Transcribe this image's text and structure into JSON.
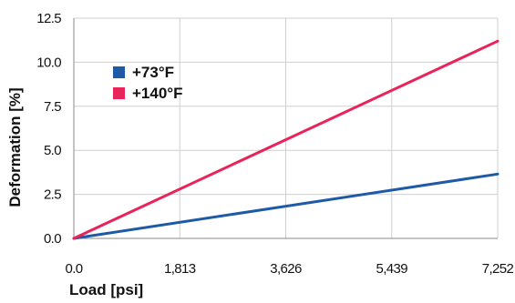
{
  "chart_data": {
    "type": "line",
    "xlabel": "Load [psi]",
    "ylabel": "Deformation [%]",
    "xlim": [
      0,
      7252
    ],
    "ylim": [
      0,
      12.5
    ],
    "x_ticks": [
      0,
      1813,
      3626,
      5439,
      7252
    ],
    "x_tick_labels": [
      "0.0",
      "1,813",
      "3,626",
      "5,439",
      "7,252"
    ],
    "y_ticks": [
      0,
      2.5,
      5,
      7.5,
      10,
      12.5
    ],
    "y_tick_labels": [
      "0.0",
      "2.5",
      "5.0",
      "7.5",
      "10.0",
      "12.5"
    ],
    "grid": true,
    "legend_position": "top-left",
    "series": [
      {
        "name": "+73°F",
        "color": "#1f5aa6",
        "x": [
          0,
          7252
        ],
        "y": [
          0,
          3.65
        ]
      },
      {
        "name": "+140°F",
        "color": "#e8245a",
        "x": [
          0,
          7252
        ],
        "y": [
          0,
          11.2
        ]
      }
    ]
  }
}
